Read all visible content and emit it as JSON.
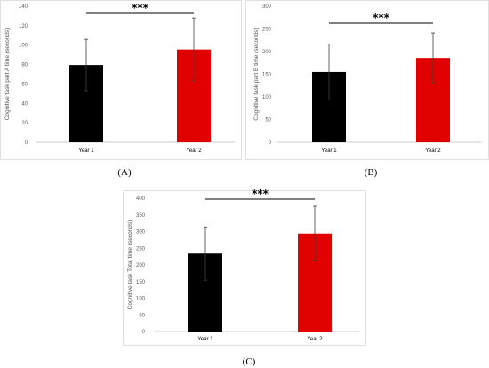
{
  "chart_data": [
    {
      "type": "bar",
      "panel_label": "(A)",
      "categories": [
        "Year 1",
        "Year 2"
      ],
      "values": [
        79.5,
        95.5
      ],
      "error": [
        26.5,
        32.5
      ],
      "colors": [
        "#000000",
        "#e00000"
      ],
      "ylabel": "Cognitive task part A time (seconds)",
      "ylim": [
        0,
        140
      ],
      "yticks": [
        "0",
        "20",
        "40",
        "60",
        "80",
        "100",
        "120",
        "140"
      ],
      "significance": "***",
      "grid": false
    },
    {
      "type": "bar",
      "panel_label": "(B)",
      "categories": [
        "Year 1",
        "Year 2"
      ],
      "values": [
        155,
        186
      ],
      "error": [
        62,
        55
      ],
      "colors": [
        "#000000",
        "#e00000"
      ],
      "ylabel": "Cognitive task part B time (seconds)",
      "ylim": [
        0,
        300
      ],
      "yticks": [
        "0",
        "50",
        "100",
        "150",
        "200",
        "250",
        "300"
      ],
      "significance": "***",
      "grid": false
    },
    {
      "type": "bar",
      "panel_label": "(C)",
      "categories": [
        "Year 1",
        "Year 2"
      ],
      "values": [
        234,
        294
      ],
      "error": [
        80,
        82
      ],
      "colors": [
        "#000000",
        "#e00000"
      ],
      "ylabel": "Cognitive task Total time (seconds)",
      "ylim": [
        0,
        400
      ],
      "yticks": [
        "0",
        "50",
        "100",
        "150",
        "200",
        "250",
        "300",
        "350",
        "400"
      ],
      "significance": "***",
      "grid": false
    }
  ]
}
